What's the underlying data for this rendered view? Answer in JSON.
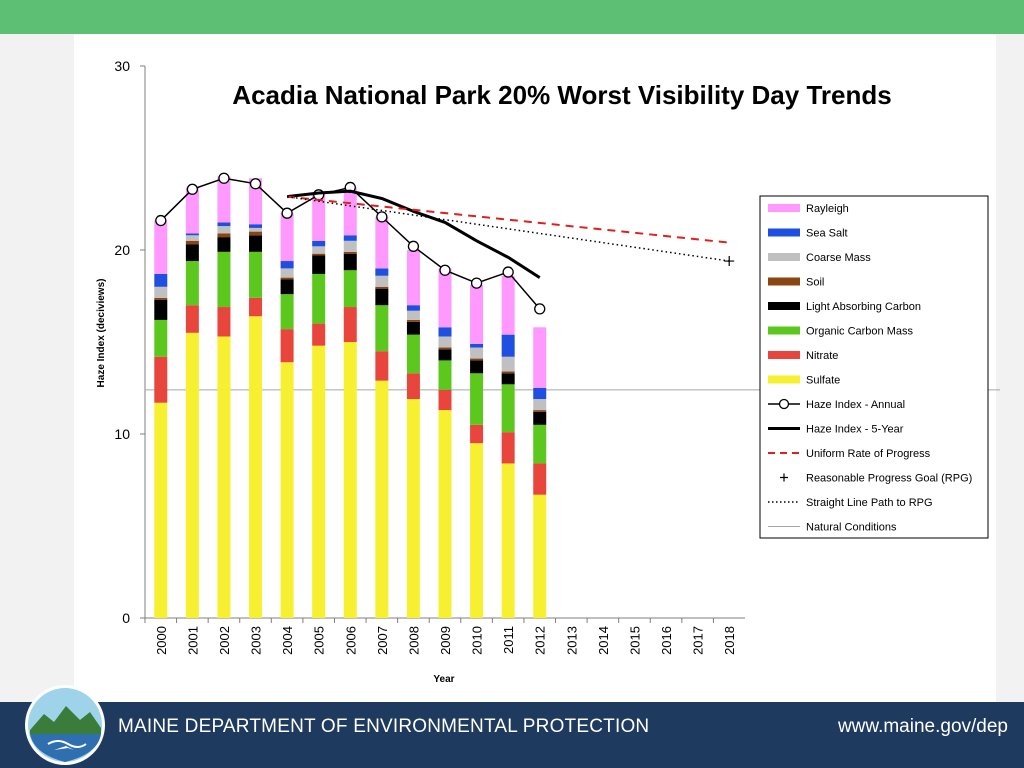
{
  "footer": {
    "department": "MAINE DEPARTMENT OF ENVIRONMENTAL PROTECTION",
    "url": "www.maine.gov/dep"
  },
  "colors": {
    "top_band": "#5cbf73",
    "footer_bg": "#1f3a5f",
    "rayleigh": "#ff99ff",
    "sea_salt": "#1f4fe0",
    "coarse_mass": "#c0c0c0",
    "soil": "#8b4513",
    "light_absorbing_carbon": "#000000",
    "organic_carbon_mass": "#5cc81e",
    "nitrate": "#e8453c",
    "sulfate": "#f7f030",
    "uniform_rate": "#e02020"
  },
  "chart_data": {
    "type": "bar",
    "stacked": true,
    "title": "Acadia National Park 20% Worst Visibility Day Trends",
    "xlabel": "Year",
    "ylabel": "Haze Index (deciviews)",
    "ylim": [
      0,
      30
    ],
    "yticks": [
      0,
      10,
      20,
      30
    ],
    "categories": [
      "2000",
      "2001",
      "2002",
      "2003",
      "2004",
      "2005",
      "2006",
      "2007",
      "2008",
      "2009",
      "2010",
      "2011",
      "2012",
      "2013",
      "2014",
      "2015",
      "2016",
      "2017",
      "2018"
    ],
    "legend_position": "right",
    "grid": false,
    "series": [
      {
        "name": "Sulfate",
        "color_key": "sulfate",
        "values": [
          11.7,
          15.5,
          15.3,
          16.4,
          13.9,
          14.8,
          15.0,
          12.9,
          11.9,
          11.3,
          9.5,
          8.4,
          6.7,
          null,
          null,
          null,
          null,
          null,
          null
        ]
      },
      {
        "name": "Nitrate",
        "color_key": "nitrate",
        "values": [
          2.5,
          1.5,
          1.6,
          1.0,
          1.8,
          1.2,
          1.9,
          1.6,
          1.4,
          1.1,
          1.0,
          1.7,
          1.7,
          null,
          null,
          null,
          null,
          null,
          null
        ]
      },
      {
        "name": "Organic Carbon Mass",
        "color_key": "organic_carbon_mass",
        "values": [
          2.0,
          2.4,
          3.0,
          2.5,
          1.9,
          2.7,
          2.0,
          2.5,
          2.1,
          1.6,
          2.8,
          2.6,
          2.1,
          null,
          null,
          null,
          null,
          null,
          null
        ]
      },
      {
        "name": "Light Absorbing Carbon",
        "color_key": "light_absorbing_carbon",
        "values": [
          1.1,
          0.9,
          0.8,
          0.9,
          0.8,
          1.0,
          0.9,
          0.9,
          0.7,
          0.6,
          0.7,
          0.6,
          0.7,
          null,
          null,
          null,
          null,
          null,
          null
        ]
      },
      {
        "name": "Soil",
        "color_key": "soil",
        "values": [
          0.1,
          0.2,
          0.2,
          0.2,
          0.1,
          0.1,
          0.1,
          0.1,
          0.1,
          0.1,
          0.1,
          0.1,
          0.1,
          null,
          null,
          null,
          null,
          null,
          null
        ]
      },
      {
        "name": "Coarse Mass",
        "color_key": "coarse_mass",
        "values": [
          0.6,
          0.3,
          0.4,
          0.2,
          0.5,
          0.4,
          0.6,
          0.6,
          0.5,
          0.6,
          0.6,
          0.8,
          0.6,
          null,
          null,
          null,
          null,
          null,
          null
        ]
      },
      {
        "name": "Sea Salt",
        "color_key": "sea_salt",
        "values": [
          0.7,
          0.1,
          0.2,
          0.2,
          0.4,
          0.3,
          0.3,
          0.4,
          0.3,
          0.5,
          0.2,
          1.2,
          0.6,
          null,
          null,
          null,
          null,
          null,
          null
        ]
      },
      {
        "name": "Rayleigh",
        "color_key": "rayleigh",
        "values": [
          2.9,
          2.5,
          2.5,
          2.5,
          2.6,
          2.6,
          2.6,
          2.8,
          3.0,
          3.2,
          3.2,
          3.2,
          3.3,
          null,
          null,
          null,
          null,
          null,
          null
        ]
      }
    ],
    "lines": [
      {
        "name": "Haze Index - Annual",
        "style": "solid-markers",
        "x": [
          "2000",
          "2001",
          "2002",
          "2003",
          "2004",
          "2005",
          "2006",
          "2007",
          "2008",
          "2009",
          "2010",
          "2011",
          "2012"
        ],
        "y": [
          21.6,
          23.3,
          23.9,
          23.6,
          22.0,
          23.0,
          23.4,
          21.8,
          20.2,
          18.9,
          18.2,
          18.8,
          16.8
        ]
      },
      {
        "name": "Haze Index - 5-Year",
        "style": "solid-thick",
        "x": [
          "2004",
          "2005",
          "2006",
          "2007",
          "2008",
          "2009",
          "2010",
          "2011",
          "2012"
        ],
        "y": [
          22.9,
          23.1,
          23.2,
          22.8,
          22.1,
          21.5,
          20.5,
          19.6,
          18.5
        ]
      },
      {
        "name": "Uniform Rate of Progress",
        "style": "dashed-red",
        "x": [
          "2004",
          "2018"
        ],
        "y": [
          22.9,
          20.4
        ]
      },
      {
        "name": "Straight Line Path to RPG",
        "style": "dotted",
        "x": [
          "2004",
          "2018"
        ],
        "y": [
          22.9,
          19.4
        ]
      },
      {
        "name": "Natural Conditions",
        "style": "thin-gray",
        "y_const": 12.4
      }
    ],
    "points": [
      {
        "name": "Reasonable Progress Goal (RPG)",
        "x": "2018",
        "y": 19.4,
        "marker": "+"
      }
    ],
    "legend": [
      {
        "label": "Rayleigh",
        "kind": "patch",
        "color_key": "rayleigh"
      },
      {
        "label": "Sea Salt",
        "kind": "patch",
        "color_key": "sea_salt"
      },
      {
        "label": "Coarse Mass",
        "kind": "patch",
        "color_key": "coarse_mass"
      },
      {
        "label": "Soil",
        "kind": "patch",
        "color_key": "soil"
      },
      {
        "label": "Light Absorbing Carbon",
        "kind": "patch",
        "color_key": "light_absorbing_carbon"
      },
      {
        "label": "Organic Carbon Mass",
        "kind": "patch",
        "color_key": "organic_carbon_mass"
      },
      {
        "label": "Nitrate",
        "kind": "patch",
        "color_key": "nitrate"
      },
      {
        "label": "Sulfate",
        "kind": "patch",
        "color_key": "sulfate"
      },
      {
        "label": "Haze Index - Annual",
        "kind": "line-marker"
      },
      {
        "label": "Haze Index - 5-Year",
        "kind": "line-thick"
      },
      {
        "label": "Uniform Rate of Progress",
        "kind": "line-dashed-red"
      },
      {
        "label": "Reasonable Progress Goal (RPG)",
        "kind": "plus"
      },
      {
        "label": "Straight Line Path to RPG",
        "kind": "line-dotted"
      },
      {
        "label": "Natural Conditions",
        "kind": "line-gray"
      }
    ]
  }
}
